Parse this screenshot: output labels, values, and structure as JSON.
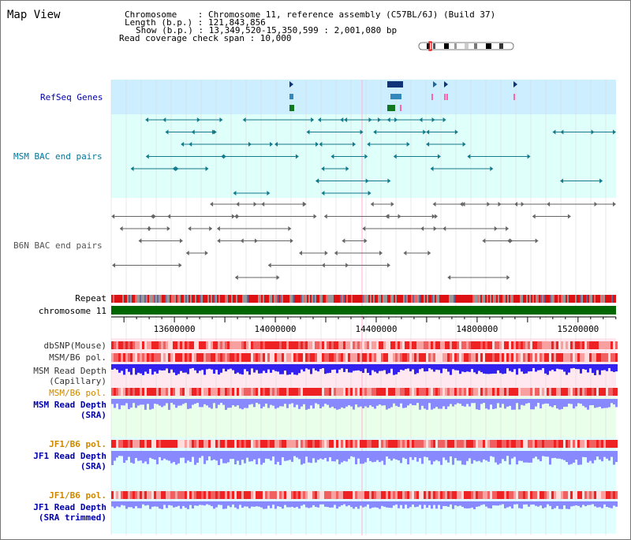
{
  "view": {
    "title": "Map View",
    "info": {
      "chromosome": "Chromosome    : Chromosome 11, reference assembly (C57BL/6J) (Build 37)",
      "length": "Length (b.p.) : 121,843,856",
      "show": "Show (b.p.) : 13,349,520-15,350,599 : 2,001,080 bp",
      "coverage": "Read coverage check span : 10,000"
    }
  },
  "tracks": [
    {
      "id": "refseq",
      "label": "RefSeq Genes",
      "color": "#0000aa"
    },
    {
      "id": "msm_bac",
      "label": "MSM BAC end pairs",
      "color": "#007799"
    },
    {
      "id": "b6n_bac",
      "label": "B6N BAC end pairs",
      "color": "#555555"
    },
    {
      "id": "repeat",
      "label": "Repeat",
      "color": "#000000"
    },
    {
      "id": "chrom",
      "label": "chromosome 11",
      "color": "#000000"
    },
    {
      "id": "dbsnp",
      "label": "dbSNP(Mouse)",
      "color": "#333333"
    },
    {
      "id": "msmb6pol",
      "label": "MSM/B6 pol.",
      "color": "#333333"
    },
    {
      "id": "msmdepth_cap",
      "label": "MSM Read Depth",
      "label2": "(Capillary)",
      "color": "#333333"
    },
    {
      "id": "msmb6pol2",
      "label": "MSM/B6 pol.",
      "color": "#cc8800"
    },
    {
      "id": "msmdepth_sra",
      "label": "MSM Read Depth",
      "label2": "(SRA)",
      "color": "#0000aa"
    },
    {
      "id": "jf1b6pol",
      "label": "JF1/B6 pol.",
      "color": "#cc8800"
    },
    {
      "id": "jf1depth_sra",
      "label": "JF1 Read Depth",
      "label2": "(SRA)",
      "color": "#0000aa"
    },
    {
      "id": "jf1b6pol2",
      "label": "JF1/B6 pol.",
      "color": "#cc8800"
    },
    {
      "id": "jf1depth_trim",
      "label": "JF1 Read Depth",
      "label2": "(SRA trimmed)",
      "color": "#0000aa"
    }
  ],
  "axis": {
    "start": 13349520,
    "end": 15350599,
    "ticks": [
      "13600000",
      "14000000",
      "14400000",
      "14800000",
      "15200000"
    ]
  },
  "colors": {
    "refseq_bg": "#cceeff",
    "msm_bg": "#dffffb",
    "b6n_bg": "#ffffff",
    "depth_bg_pink": "#ffe8f0",
    "depth_bg_green": "#eaffea",
    "depth_bg_cyan": "#e0ffff",
    "chrom_band": "#006600",
    "depth_blue": "#3322ee",
    "depth_lblue": "#8888ff"
  }
}
